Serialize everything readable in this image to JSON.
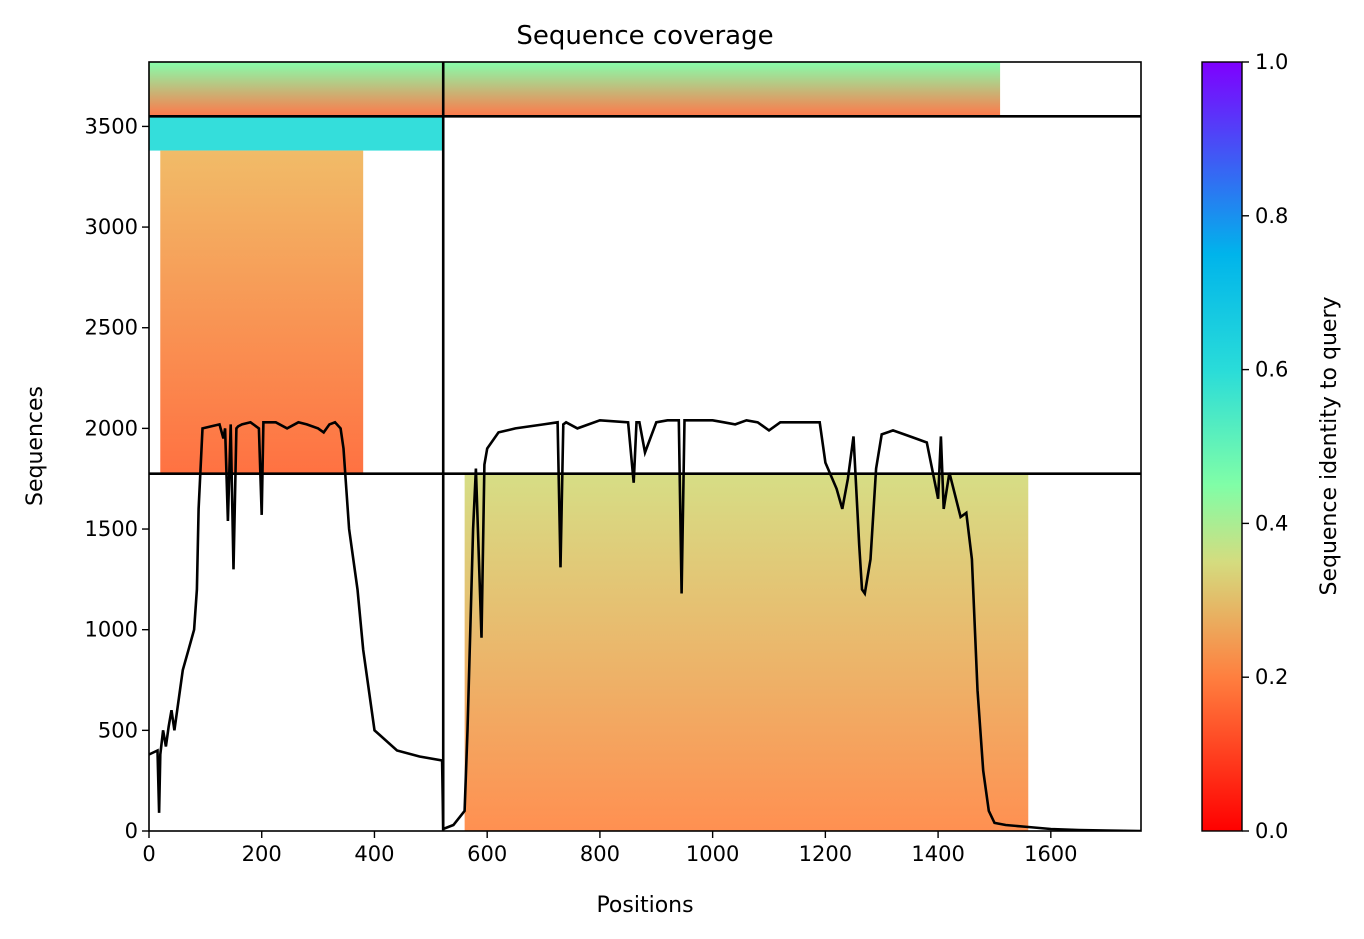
{
  "chart_data": {
    "type": "heatmap",
    "title": "Sequence coverage",
    "xlabel": "Positions",
    "ylabel": "Sequences",
    "xlim": [
      0,
      1760
    ],
    "ylim": [
      0,
      3820
    ],
    "xticks": [
      0,
      200,
      400,
      600,
      800,
      1000,
      1200,
      1400,
      1600
    ],
    "yticks": [
      0,
      500,
      1000,
      1500,
      2000,
      2500,
      3000,
      3500
    ],
    "colorbar": {
      "label": "Sequence identity to query",
      "range": [
        0,
        1
      ],
      "ticks": [
        "0.0",
        "0.2",
        "0.4",
        "0.6",
        "0.8",
        "1.0"
      ],
      "colormap": "rainbow_r",
      "stops": [
        "#ff0000",
        "#ff7f3f",
        "#d4dc7f",
        "#80fea7",
        "#00b4eb",
        "#7f00ff"
      ]
    },
    "dividers": {
      "x": [
        522
      ],
      "y": [
        1775,
        3550
      ]
    },
    "blocks": [
      {
        "x0": 0,
        "x1": 522,
        "y0": 3550,
        "y1": 3820,
        "profile": [
          [
            0,
            0
          ],
          [
            0,
            522
          ]
        ],
        "color_top": "#80fea7",
        "color_bottom": "#ff7040"
      },
      {
        "x0": 0,
        "x1": 522,
        "y0": 3380,
        "y1": 3550,
        "color": "#29dcd9"
      },
      {
        "x0": 520,
        "x1": 1510,
        "y0": 3550,
        "y1": 3820,
        "color_top": "#80fea7",
        "color_bottom": "#ff7040"
      },
      {
        "x0": 20,
        "x1": 380,
        "y0": 1775,
        "y1": 3380,
        "color_top": "#f0b860",
        "color_bottom": "#ff6a38"
      },
      {
        "x0": 560,
        "x1": 1560,
        "y0": 0,
        "y1": 1775,
        "color_top": "#d4dc7f",
        "color_bottom": "#ff8a48"
      }
    ],
    "coverage_line": {
      "name": "",
      "x": [
        0,
        15,
        18,
        20,
        25,
        30,
        35,
        40,
        45,
        50,
        55,
        60,
        70,
        80,
        85,
        88,
        95,
        110,
        125,
        132,
        135,
        140,
        145,
        150,
        155,
        158,
        165,
        180,
        195,
        200,
        203,
        210,
        225,
        245,
        265,
        280,
        300,
        310,
        320,
        330,
        340,
        345,
        350,
        355,
        360,
        370,
        380,
        400,
        440,
        480,
        520,
        522,
        540,
        560,
        565,
        570,
        575,
        580,
        590,
        595,
        600,
        620,
        650,
        700,
        725,
        730,
        735,
        740,
        760,
        800,
        850,
        860,
        865,
        870,
        880,
        900,
        920,
        940,
        945,
        950,
        960,
        1000,
        1020,
        1040,
        1060,
        1080,
        1100,
        1120,
        1140,
        1160,
        1190,
        1200,
        1220,
        1230,
        1240,
        1250,
        1260,
        1265,
        1270,
        1280,
        1290,
        1300,
        1320,
        1340,
        1360,
        1380,
        1400,
        1405,
        1410,
        1420,
        1440,
        1450,
        1460,
        1470,
        1480,
        1490,
        1500,
        1520,
        1560,
        1600,
        1650,
        1700,
        1760
      ],
      "y": [
        380,
        400,
        90,
        380,
        500,
        420,
        520,
        600,
        500,
        600,
        700,
        800,
        900,
        1000,
        1200,
        1600,
        2000,
        2010,
        2020,
        1950,
        2000,
        1540,
        2020,
        1300,
        2000,
        2010,
        2020,
        2030,
        2000,
        1570,
        2030,
        2030,
        2030,
        2000,
        2030,
        2020,
        2000,
        1980,
        2020,
        2030,
        2000,
        1900,
        1700,
        1500,
        1400,
        1200,
        900,
        500,
        400,
        370,
        350,
        10,
        30,
        100,
        500,
        1000,
        1500,
        1800,
        960,
        1820,
        1900,
        1980,
        2000,
        2020,
        2030,
        1310,
        2020,
        2030,
        2000,
        2040,
        2030,
        1730,
        2030,
        2030,
        1880,
        2030,
        2040,
        2040,
        1180,
        2040,
        2040,
        2040,
        2030,
        2020,
        2040,
        2030,
        1990,
        2030,
        2030,
        2030,
        2030,
        1830,
        1700,
        1600,
        1750,
        1960,
        1420,
        1200,
        1180,
        1350,
        1800,
        1970,
        1990,
        1970,
        1950,
        1930,
        1650,
        1960,
        1600,
        1780,
        1560,
        1580,
        1350,
        700,
        300,
        100,
        40,
        30,
        20,
        10,
        5,
        2,
        0
      ]
    }
  }
}
